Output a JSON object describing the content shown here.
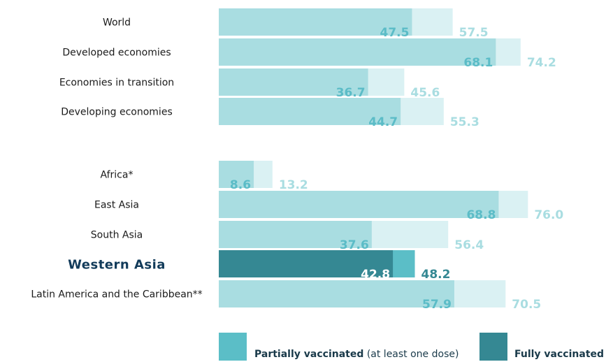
{
  "chart_data": {
    "type": "bar",
    "orientation": "horizontal",
    "categories": [
      "World",
      "Developed economies",
      "Economies in transition",
      "Developing economies",
      "Africa*",
      "East Asia",
      "South Asia",
      "Western Asia",
      "Latin America and the Caribbean**"
    ],
    "highlight_category": "Western Asia",
    "series": [
      {
        "name": "Fully vaccinated",
        "values": [
          47.5,
          68.1,
          36.7,
          44.7,
          8.6,
          68.8,
          37.6,
          42.8,
          57.9
        ]
      },
      {
        "name": "Partially vaccinated",
        "values": [
          57.5,
          74.2,
          45.6,
          55.3,
          13.2,
          76.0,
          56.4,
          48.2,
          70.5
        ]
      }
    ],
    "series_overlap": true,
    "xlim": [
      0,
      100
    ],
    "grid": false,
    "legend": {
      "placement": "bottom",
      "items": [
        {
          "key": "partial",
          "bold": "Partially vaccinated",
          "rest": " (at least one dose)"
        },
        {
          "key": "full",
          "bold": "Fully vaccinated",
          "rest": ""
        }
      ]
    },
    "colors": {
      "full": "#a9dde1",
      "partial": "#daf1f3",
      "full_label": "#5bbcc7",
      "partial_label": "#a9dde1",
      "highlight_full": "#358893",
      "highlight_partial": "#5bbec7",
      "highlight_full_label": "#ffffff",
      "highlight_partial_label": "#358893",
      "legend_partial": "#5bbec7",
      "legend_full": "#358893"
    }
  }
}
